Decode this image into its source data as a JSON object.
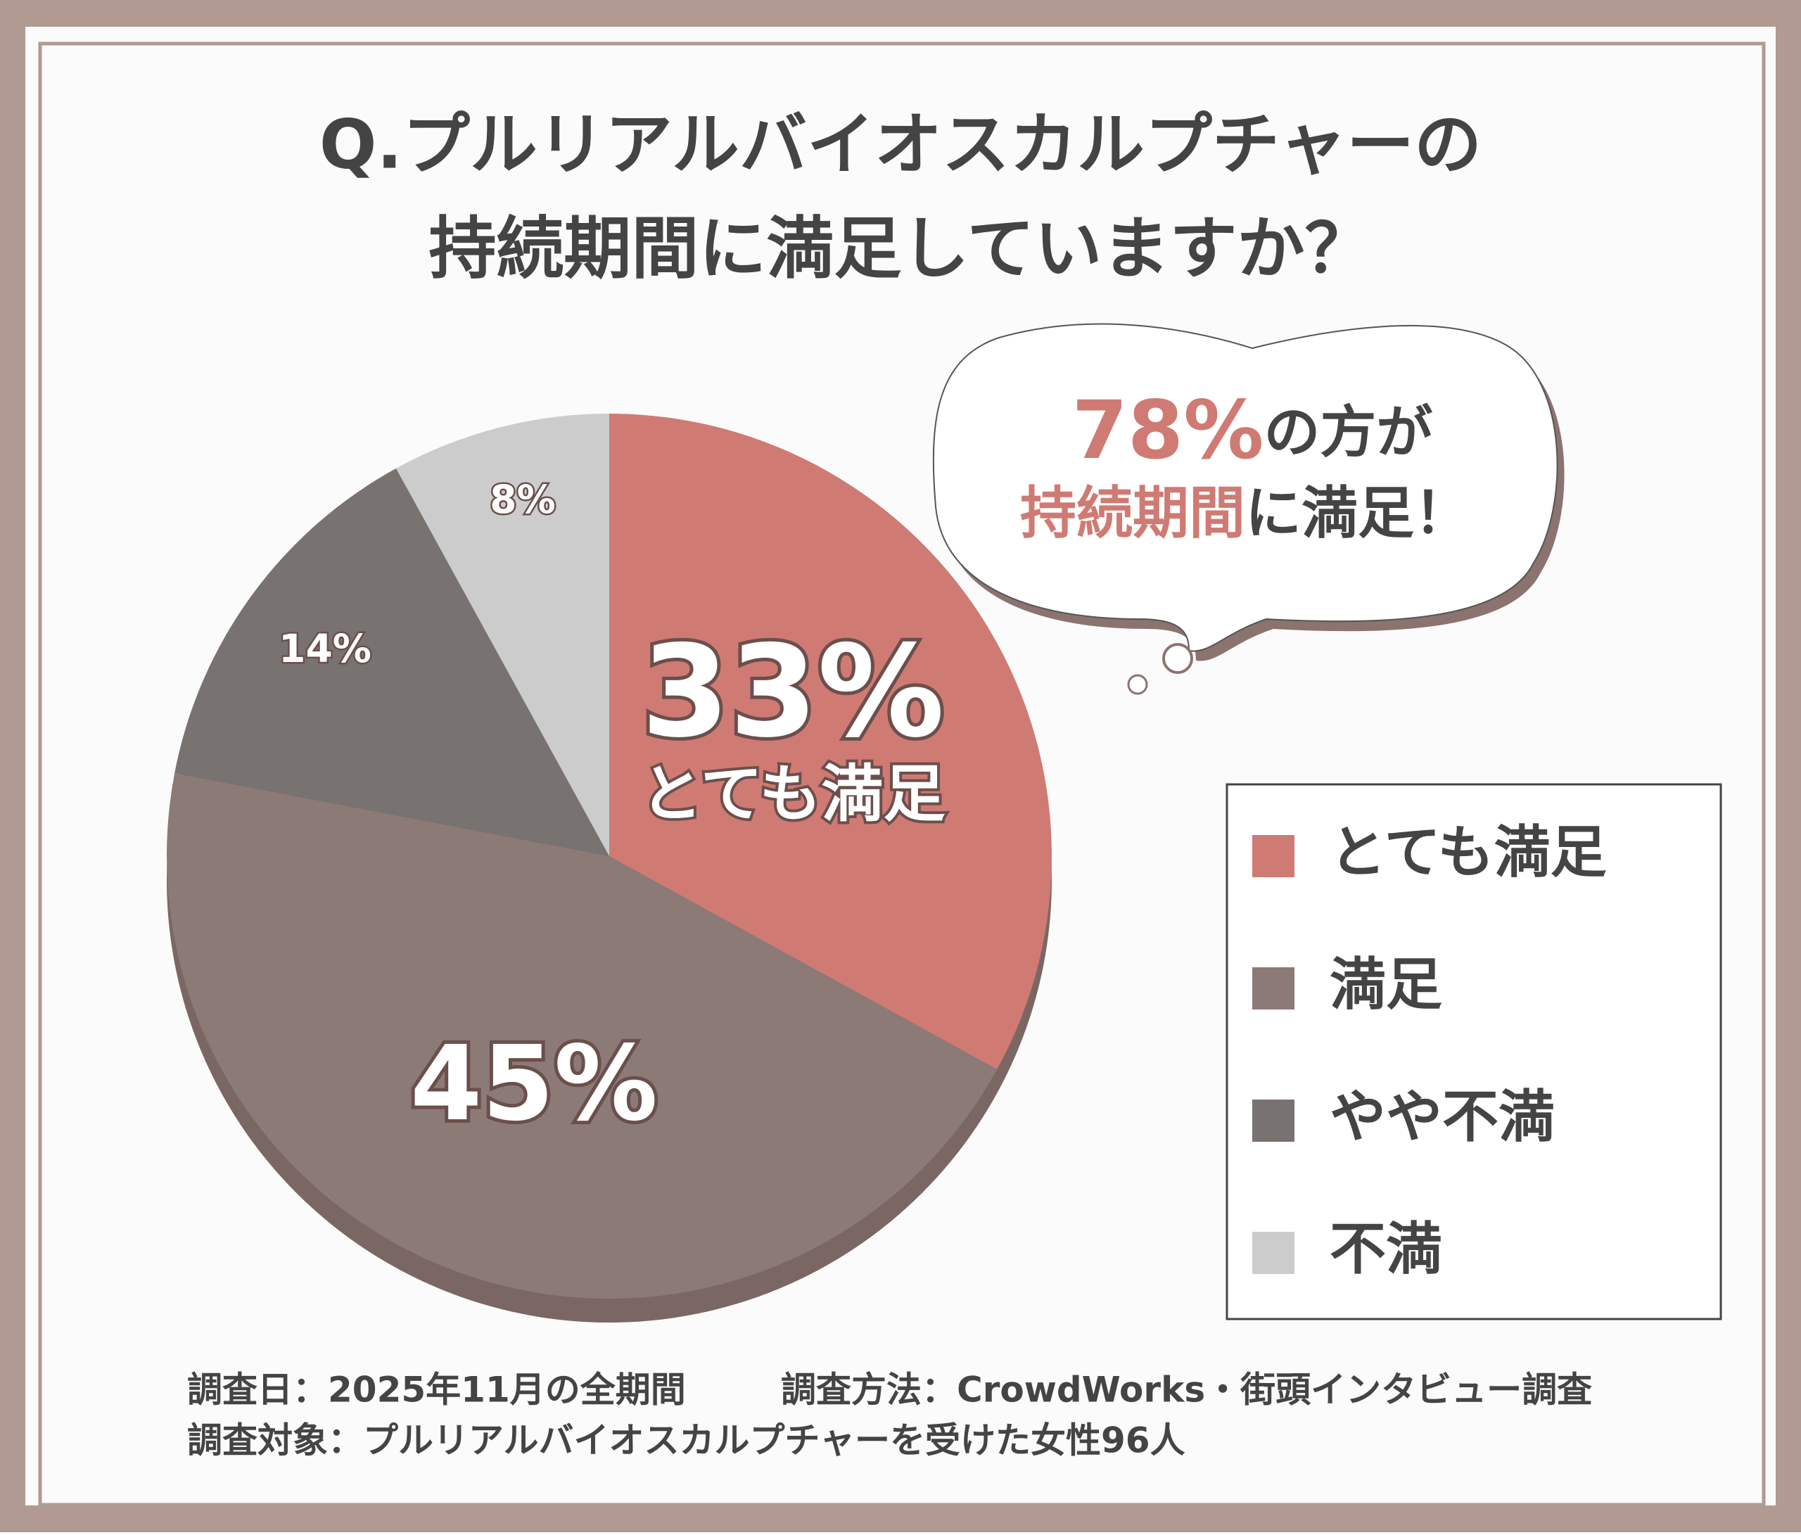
{
  "chart_data": {
    "type": "pie",
    "title": [
      "Q.プルリアルバイオスカルプチャーの",
      "持続期間に満足していますか？"
    ],
    "categories": [
      "とても満足",
      "満足",
      "やや不満",
      "不満"
    ],
    "values": [
      33,
      45,
      14,
      8
    ],
    "value_labels": [
      "33%",
      "45%",
      "14%",
      "8%"
    ],
    "colors": [
      "#d07a74",
      "#8c7a77",
      "#787271",
      "#cccccc"
    ],
    "legend": "right",
    "callout": {
      "line1": [
        "78%",
        "の方が"
      ],
      "line2": [
        "持続期間",
        "に満足！"
      ]
    },
    "footnotes": [
      "調査日：2025年11月の全期間",
      "調査方法：CrowdWorks・街頭インタビュー調査",
      "調査対象：プルリアルバイオスカルプチャーを受けた女性96人"
    ]
  }
}
